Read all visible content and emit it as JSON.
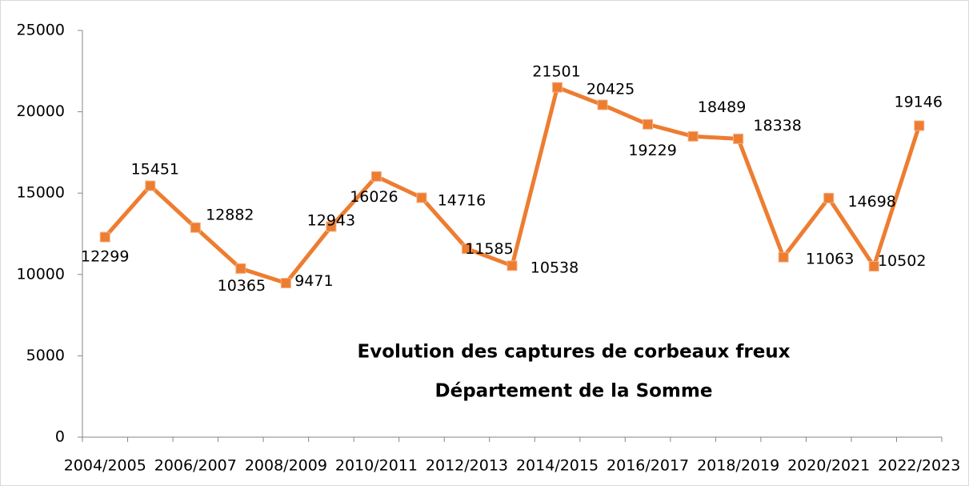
{
  "chart_data": {
    "type": "line",
    "title": "Evolution des captures de corbeaux freux",
    "subtitle": "Département de la Somme",
    "categories": [
      "2004/2005",
      null,
      "2006/2007",
      null,
      "2008/2009",
      null,
      "2010/2011",
      null,
      "2012/2013",
      null,
      "2014/2015",
      null,
      "2016/2017",
      null,
      "2018/2019",
      null,
      "2020/2021",
      null,
      "2022/2023"
    ],
    "series": [
      {
        "name": "Captures",
        "color": "#ed7d31",
        "values": [
          12299,
          15451,
          12882,
          10365,
          9471,
          12943,
          16026,
          14716,
          11585,
          10538,
          21501,
          20425,
          19229,
          18489,
          18338,
          11063,
          14698,
          10502,
          19146
        ]
      }
    ],
    "ylim": [
      0,
      25000
    ],
    "yticks": [
      0,
      5000,
      10000,
      15000,
      20000,
      25000
    ],
    "grid": false,
    "legend": false
  }
}
